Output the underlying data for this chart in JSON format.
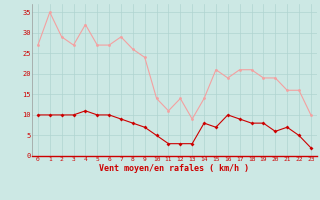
{
  "x": [
    0,
    1,
    2,
    3,
    4,
    5,
    6,
    7,
    8,
    9,
    10,
    11,
    12,
    13,
    14,
    15,
    16,
    17,
    18,
    19,
    20,
    21,
    22,
    23
  ],
  "rafales": [
    27,
    35,
    29,
    27,
    32,
    27,
    27,
    29,
    26,
    24,
    14,
    11,
    14,
    9,
    14,
    21,
    19,
    21,
    21,
    19,
    19,
    16,
    16,
    10
  ],
  "moyen": [
    10,
    10,
    10,
    10,
    11,
    10,
    10,
    9,
    8,
    7,
    5,
    3,
    3,
    3,
    8,
    7,
    10,
    9,
    8,
    8,
    6,
    7,
    5,
    2
  ],
  "bg_color": "#cce8e4",
  "grid_color": "#b0d4d0",
  "line_color_rafales": "#f4a0a0",
  "line_color_moyen": "#cc0000",
  "marker_rafales": "o",
  "marker_moyen": "D",
  "xlabel": "Vent moyen/en rafales ( km/h )",
  "xlabel_color": "#cc0000",
  "tick_color": "#cc0000",
  "ylim": [
    0,
    37
  ],
  "yticks": [
    0,
    5,
    10,
    15,
    20,
    25,
    30,
    35
  ],
  "xticks": [
    0,
    1,
    2,
    3,
    4,
    5,
    6,
    7,
    8,
    9,
    10,
    11,
    12,
    13,
    14,
    15,
    16,
    17,
    18,
    19,
    20,
    21,
    22,
    23
  ],
  "marker_size": 2.0,
  "linewidth": 0.8
}
